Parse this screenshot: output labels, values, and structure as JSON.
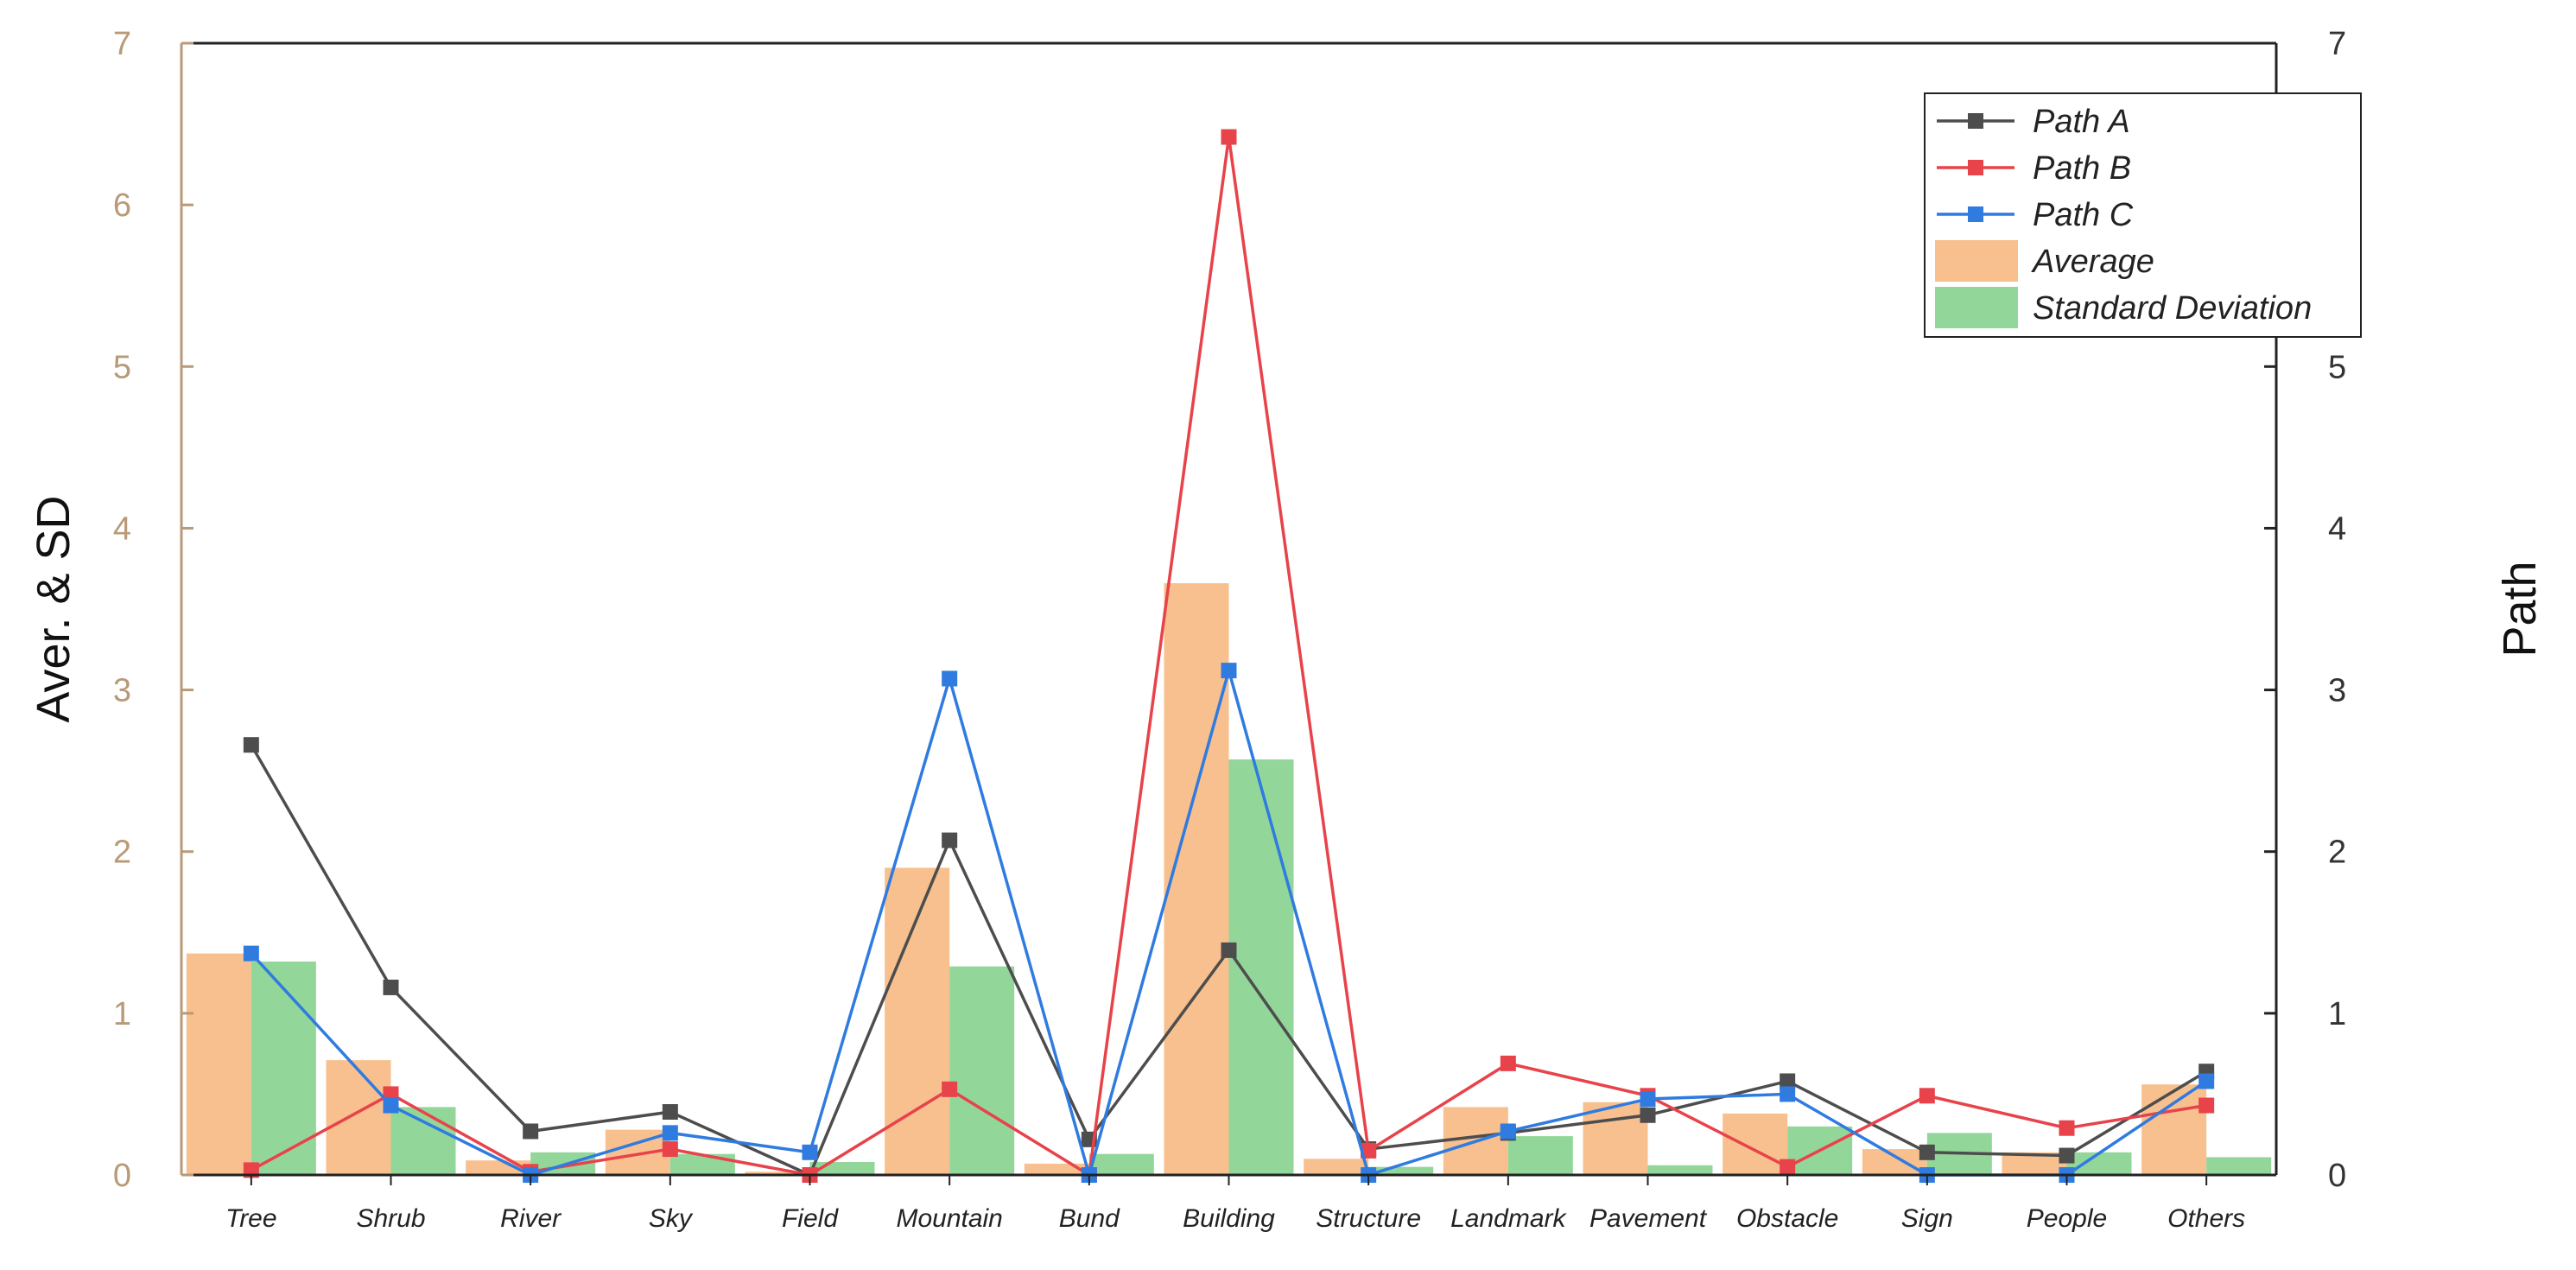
{
  "chart_data": {
    "type": "bar",
    "categories": [
      "Tree",
      "Shrub",
      "River",
      "Sky",
      "Field",
      "Mountain",
      "Bund",
      "Building",
      "Structure",
      "Landmark",
      "Pavement",
      "Obstacle",
      "Sign",
      "People",
      "Others"
    ],
    "ylabel": "Aver. & SD",
    "y2label": "Path",
    "ylim": [
      0,
      7
    ],
    "y2lim": [
      0,
      7
    ],
    "yticks": [
      0,
      1,
      2,
      3,
      4,
      5,
      6,
      7
    ],
    "y2ticks": [
      0,
      1,
      2,
      3,
      4,
      5,
      6,
      7
    ],
    "legend_position": "top-right",
    "grid": false,
    "bar_series": [
      {
        "name": "Average",
        "color": "#f7c08e",
        "values": [
          1.37,
          0.71,
          0.09,
          0.28,
          0.02,
          1.9,
          0.07,
          3.66,
          0.1,
          0.42,
          0.45,
          0.38,
          0.16,
          0.14,
          0.56
        ]
      },
      {
        "name": "Standard Deviation",
        "color": "#93d69a",
        "values": [
          1.32,
          0.42,
          0.14,
          0.13,
          0.08,
          1.29,
          0.13,
          2.57,
          0.05,
          0.24,
          0.06,
          0.3,
          0.26,
          0.14,
          0.11
        ]
      }
    ],
    "line_series": [
      {
        "name": "Path A",
        "color": "#4d4d4d",
        "values": [
          2.66,
          1.16,
          0.27,
          0.39,
          0.0,
          2.07,
          0.22,
          1.39,
          0.16,
          0.26,
          0.37,
          0.58,
          0.14,
          0.12,
          0.64
        ]
      },
      {
        "name": "Path B",
        "color": "#e8424a",
        "values": [
          0.03,
          0.5,
          0.02,
          0.16,
          0.0,
          0.53,
          0.0,
          6.42,
          0.15,
          0.69,
          0.49,
          0.05,
          0.49,
          0.29,
          0.43
        ]
      },
      {
        "name": "Path C",
        "color": "#2f7be0",
        "values": [
          1.37,
          0.43,
          0.0,
          0.26,
          0.14,
          3.07,
          0.0,
          3.12,
          0.0,
          0.27,
          0.47,
          0.5,
          0.0,
          0.0,
          0.58
        ]
      }
    ]
  }
}
